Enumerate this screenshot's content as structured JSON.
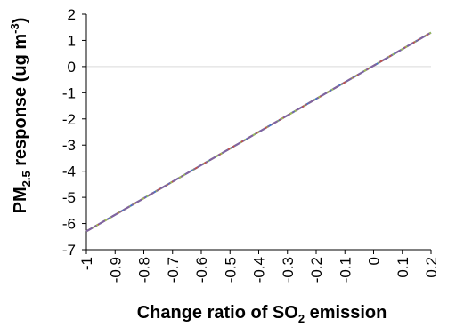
{
  "chart_data": {
    "type": "line",
    "xlabel": {
      "main": "Change ratio of SO",
      "sub": "2",
      "tail": " emission"
    },
    "ylabel": {
      "main": "PM",
      "sub": "2.5",
      "mid": " response (ug m",
      "sup": "-3",
      "tail": ")"
    },
    "xlim": [
      -1,
      0.2
    ],
    "ylim": [
      -7,
      2
    ],
    "x_ticks": [
      "-1",
      "-0.9",
      "-0.8",
      "-0.7",
      "-0.6",
      "-0.5",
      "-0.4",
      "-0.3",
      "-0.2",
      "-0.1",
      "0",
      "0.1",
      "0.2"
    ],
    "y_ticks": [
      "2",
      "1",
      "0",
      "-1",
      "-2",
      "-3",
      "-4",
      "-5",
      "-6",
      "-7"
    ],
    "grid": false,
    "series": [
      {
        "color": "#4472c4",
        "points": [
          [
            -1,
            -6.3
          ],
          [
            0.2,
            1.3
          ]
        ]
      },
      {
        "color": "#c0504d",
        "points": [
          [
            -1,
            -6.3
          ],
          [
            0.2,
            1.3
          ]
        ]
      },
      {
        "color": "#9bbb59",
        "points": [
          [
            -1,
            -6.3
          ],
          [
            0.2,
            1.3
          ]
        ]
      },
      {
        "color": "#8064a2",
        "points": [
          [
            -1,
            -6.3
          ],
          [
            0.2,
            1.3
          ]
        ]
      }
    ],
    "zero_line_color": "#d9d9d9",
    "axis_color": "#000000"
  }
}
